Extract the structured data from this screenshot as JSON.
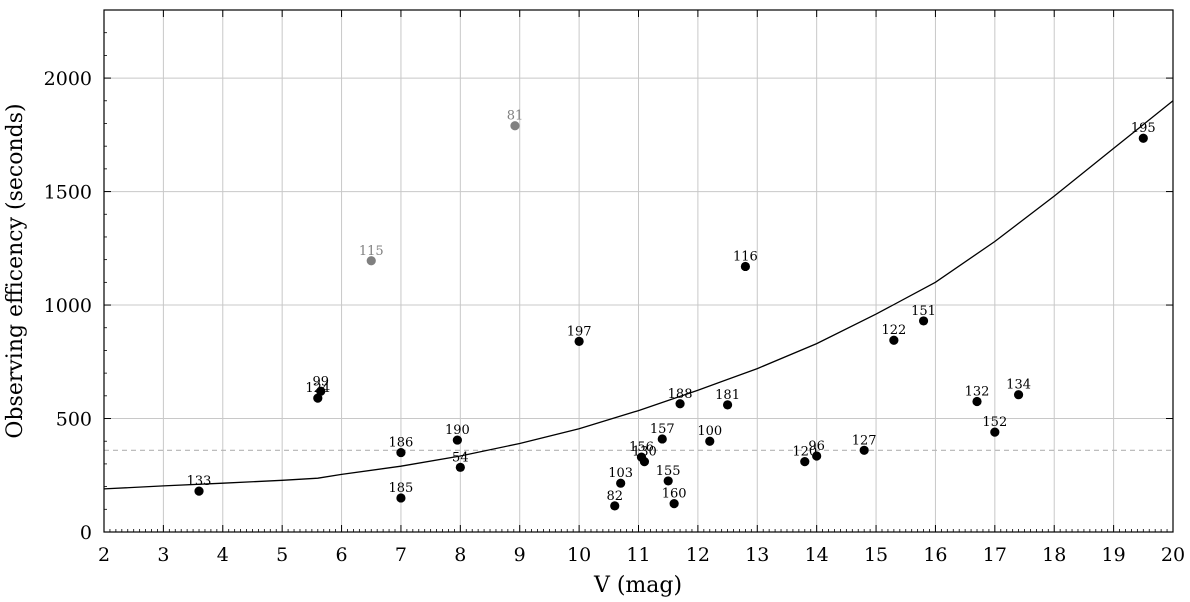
{
  "chart_data": {
    "type": "scatter",
    "xlabel": "V (mag)",
    "ylabel": "Observing efficency (seconds)",
    "xlim": [
      2,
      20
    ],
    "ylim": [
      0,
      2300
    ],
    "x_ticks": [
      "2",
      "3",
      "4",
      "5",
      "6",
      "7",
      "8",
      "9",
      "10",
      "11",
      "12",
      "13",
      "14",
      "15",
      "16",
      "17",
      "18",
      "19",
      "20"
    ],
    "y_ticks": [
      "0",
      "500",
      "1000",
      "1500",
      "2000"
    ],
    "grid": true,
    "colors": {
      "points": "#000000",
      "highlight": "#808080",
      "grid": "#c8c8c8",
      "reference_line": "#b4b4b4"
    },
    "reference_line_y": 360,
    "series": [
      {
        "color": "#000000",
        "points": [
          {
            "label": "133",
            "x": 3.6,
            "y": 180
          },
          {
            "label": "99",
            "x": 5.65,
            "y": 620
          },
          {
            "label": "124",
            "x": 5.6,
            "y": 590
          },
          {
            "label": "186",
            "x": 7.0,
            "y": 350
          },
          {
            "label": "185",
            "x": 7.0,
            "y": 150
          },
          {
            "label": "190",
            "x": 7.95,
            "y": 405
          },
          {
            "label": "54",
            "x": 8.0,
            "y": 285
          },
          {
            "label": "197",
            "x": 10.0,
            "y": 840
          },
          {
            "label": "103",
            "x": 10.7,
            "y": 215
          },
          {
            "label": "82",
            "x": 10.6,
            "y": 115
          },
          {
            "label": "156",
            "x": 11.05,
            "y": 330
          },
          {
            "label": "130",
            "x": 11.1,
            "y": 310
          },
          {
            "label": "157",
            "x": 11.4,
            "y": 410
          },
          {
            "label": "155",
            "x": 11.5,
            "y": 225
          },
          {
            "label": "160",
            "x": 11.6,
            "y": 125
          },
          {
            "label": "188",
            "x": 11.7,
            "y": 565
          },
          {
            "label": "100",
            "x": 12.2,
            "y": 400
          },
          {
            "label": "181",
            "x": 12.5,
            "y": 560
          },
          {
            "label": "116",
            "x": 12.8,
            "y": 1170
          },
          {
            "label": "120",
            "x": 13.8,
            "y": 310
          },
          {
            "label": "96",
            "x": 14.0,
            "y": 335
          },
          {
            "label": "127",
            "x": 14.8,
            "y": 360
          },
          {
            "label": "122",
            "x": 15.3,
            "y": 845
          },
          {
            "label": "151",
            "x": 15.8,
            "y": 930
          },
          {
            "label": "132",
            "x": 16.7,
            "y": 575
          },
          {
            "label": "134",
            "x": 17.4,
            "y": 605
          },
          {
            "label": "152",
            "x": 17.0,
            "y": 440
          },
          {
            "label": "195",
            "x": 19.5,
            "y": 1735
          }
        ]
      },
      {
        "color": "#808080",
        "points": [
          {
            "label": "115",
            "x": 6.5,
            "y": 1195
          },
          {
            "label": "81",
            "x": 8.92,
            "y": 1790
          }
        ]
      }
    ],
    "curve": {
      "color": "#000000",
      "x": [
        2,
        3,
        4,
        5,
        5.6,
        6,
        7,
        8,
        9,
        10,
        11,
        12,
        13,
        14,
        15,
        16,
        17,
        18,
        19,
        20
      ],
      "y": [
        190,
        203,
        215,
        228,
        237,
        254,
        290,
        335,
        390,
        455,
        535,
        625,
        720,
        830,
        960,
        1100,
        1280,
        1480,
        1690,
        1900
      ]
    }
  }
}
